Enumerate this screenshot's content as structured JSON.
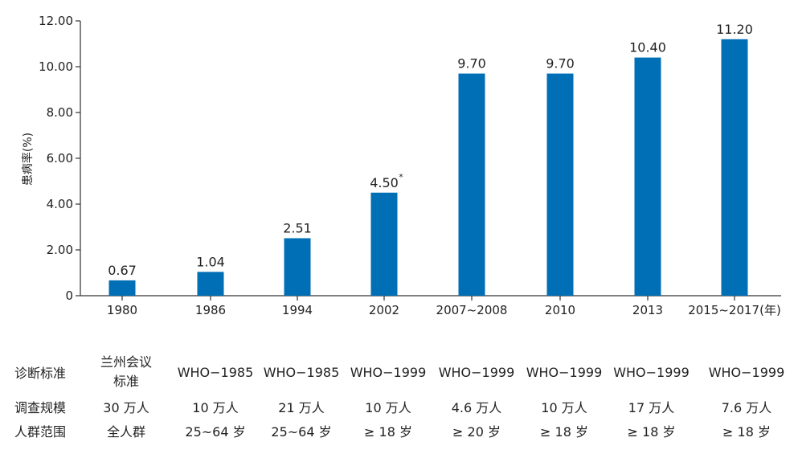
{
  "chart_data": {
    "type": "bar",
    "categories": [
      "1980",
      "1986",
      "1994",
      "2002",
      "2007~2008",
      "2010",
      "2013",
      "2015~2017"
    ],
    "x_unit": "(年)",
    "values": [
      0.67,
      1.04,
      2.51,
      4.5,
      9.7,
      9.7,
      10.4,
      11.2
    ],
    "value_labels": [
      "0.67",
      "1.04",
      "2.51",
      "4.50",
      "9.70",
      "9.70",
      "10.40",
      "11.20"
    ],
    "footnotes": [
      "",
      "",
      "",
      "*",
      "",
      "",
      "",
      ""
    ],
    "ylabel": "患病率(%)",
    "ylim": [
      0,
      12
    ],
    "yticks": [
      0,
      2,
      4,
      6,
      8,
      10,
      12
    ],
    "ytick_labels": [
      "0",
      "2.00",
      "4.00",
      "6.00",
      "8.00",
      "10.00",
      "12.00"
    ],
    "bar_color": "#006fb5",
    "grid": false
  },
  "table": {
    "rows": [
      {
        "header": "诊断标准",
        "cells": [
          "兰州会议标准",
          "WHO−1985",
          "WHO−1985",
          "WHO−1999",
          "WHO−1999",
          "WHO−1999",
          "WHO−1999",
          "WHO−1999"
        ]
      },
      {
        "header": "调查规模",
        "cells": [
          "30 万人",
          "10 万人",
          "21 万人",
          "10 万人",
          "4.6 万人",
          "10 万人",
          "17 万人",
          "7.6 万人"
        ]
      },
      {
        "header": "人群范围",
        "cells": [
          "全人群",
          "25~64 岁",
          "25~64 岁",
          "≥ 18 岁",
          "≥ 20 岁",
          "≥ 18 岁",
          "≥ 18 岁",
          "≥ 18 岁"
        ]
      }
    ]
  }
}
